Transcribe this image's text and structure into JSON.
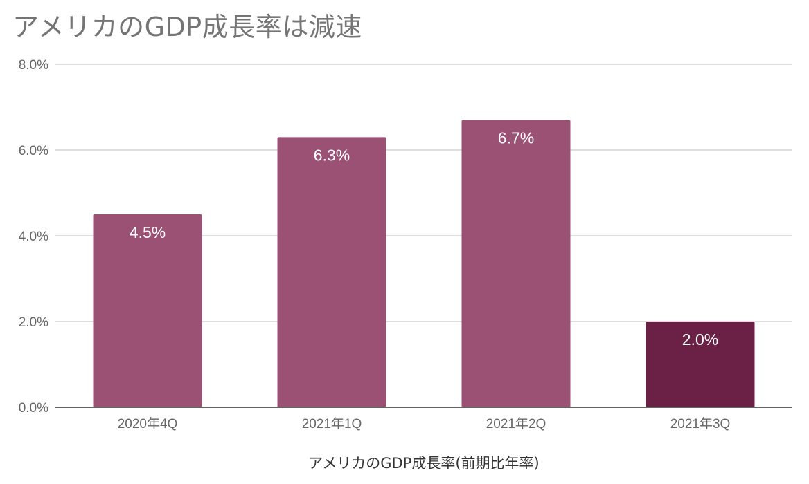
{
  "chart_data": {
    "type": "bar",
    "title": "アメリカのGDP成長率は減速",
    "xlabel": "アメリカのGDP成長率(前期比年率)",
    "ylabel": "",
    "categories": [
      "2020年4Q",
      "2021年1Q",
      "2021年2Q",
      "2021年3Q"
    ],
    "values": [
      4.5,
      6.3,
      6.7,
      2.0
    ],
    "data_labels": [
      "4.5%",
      "6.3%",
      "6.7%",
      "2.0%"
    ],
    "ylim": [
      0,
      8
    ],
    "yticks": [
      0,
      2,
      4,
      6,
      8
    ],
    "ytick_labels": [
      "0.0%",
      "2.0%",
      "4.0%",
      "6.0%",
      "8.0%"
    ],
    "grid": true,
    "legend": "none",
    "colors": {
      "bar": "#9a5174",
      "bar_highlight": "#6b2146",
      "grid": "#cccccc",
      "axis": "#333333",
      "title": "#757575"
    },
    "highlight_index": 3
  }
}
